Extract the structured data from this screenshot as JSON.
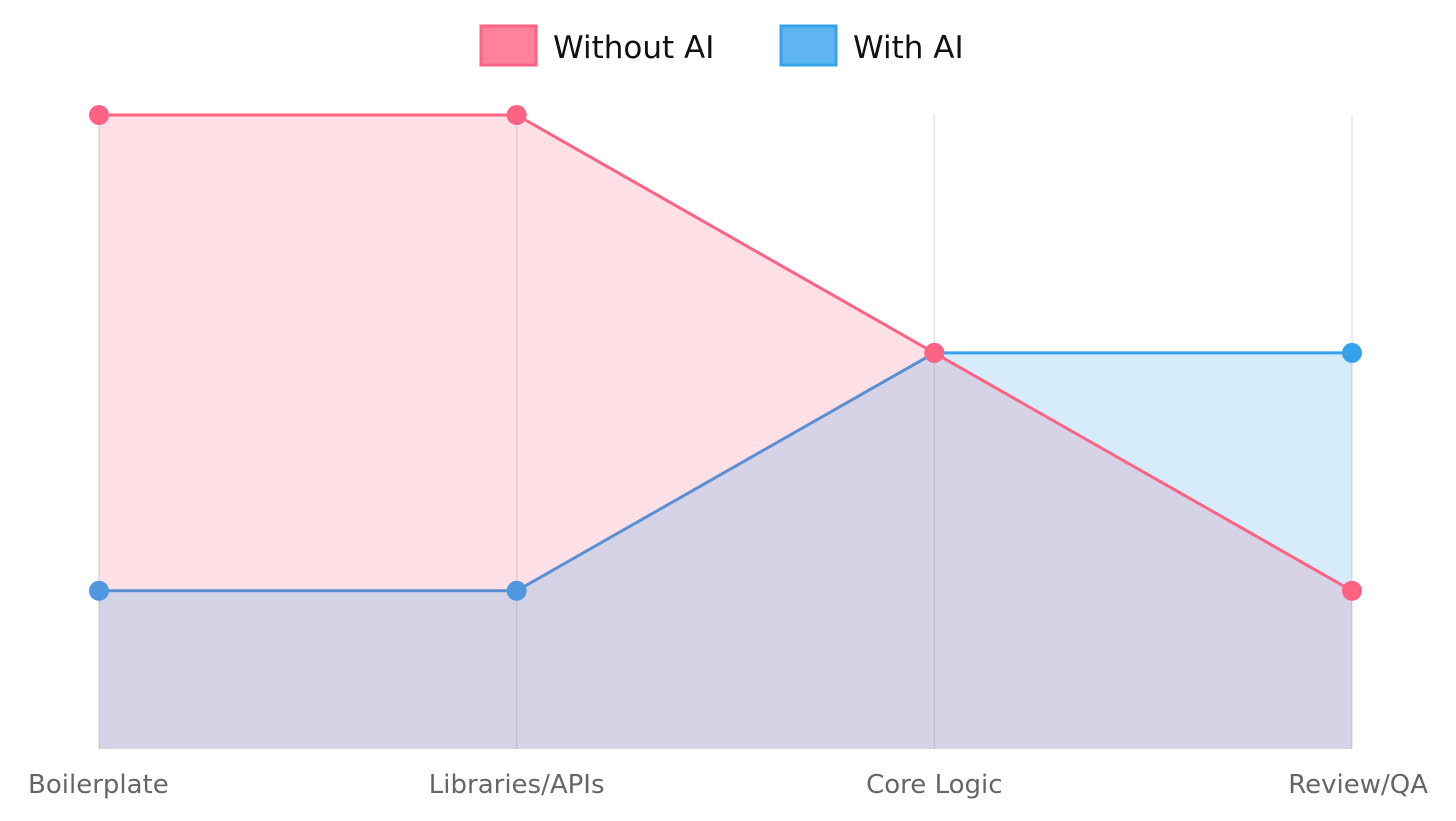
{
  "chart_data": {
    "type": "area",
    "categories": [
      "Boilerplate",
      "Libraries/APIs",
      "Core Logic",
      "Review/QA"
    ],
    "series": [
      {
        "name": "Without AI",
        "values": [
          5,
          5,
          3,
          1
        ],
        "color": "#ff6384",
        "fill": "rgba(255, 99, 132, 0.2)"
      },
      {
        "name": "With AI",
        "values": [
          1,
          1,
          3,
          3
        ],
        "color": "#36a2eb",
        "fill": "rgba(54, 162, 235, 0.2)"
      }
    ],
    "overlap_color": "#5b8fd4",
    "ylim": [
      -0.33,
      5
    ],
    "grid": "vertical",
    "legend": "top-center"
  }
}
